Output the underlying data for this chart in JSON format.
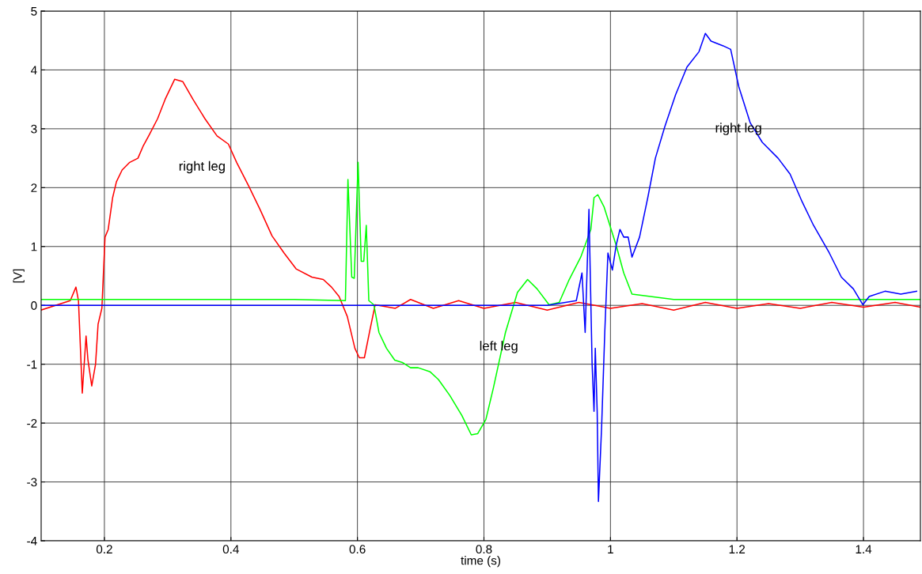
{
  "chart_data": {
    "type": "line",
    "xlabel": "time (s)",
    "ylabel": "[V]",
    "xlim": [
      0.1,
      1.49
    ],
    "xticks": [
      0.2,
      0.4,
      0.6,
      0.8,
      1,
      1.2,
      1.4
    ],
    "ylim": [
      -4,
      5
    ],
    "yticks": [
      -4,
      -3,
      -2,
      -1,
      0,
      1,
      2,
      3,
      4,
      5
    ],
    "grid": true,
    "line_style": "solid",
    "series": [
      {
        "name": "right leg",
        "color": "#ff0000",
        "x": [
          0.1,
          0.146,
          0.155,
          0.159,
          0.165,
          0.171,
          0.174,
          0.18,
          0.186,
          0.19,
          0.196,
          0.201,
          0.206,
          0.213,
          0.219,
          0.228,
          0.24,
          0.253,
          0.261,
          0.271,
          0.284,
          0.296,
          0.311,
          0.324,
          0.34,
          0.359,
          0.378,
          0.396,
          0.409,
          0.428,
          0.446,
          0.465,
          0.484,
          0.503,
          0.528,
          0.546,
          0.559,
          0.571,
          0.584,
          0.596,
          0.603,
          0.611,
          0.619,
          0.628,
          0.66,
          0.684,
          0.72,
          0.76,
          0.8,
          0.85,
          0.9,
          0.95,
          1.0,
          1.05,
          1.1,
          1.15,
          1.2,
          1.25,
          1.3,
          1.35,
          1.4,
          1.45,
          1.49
        ],
        "values": [
          -0.08,
          0.08,
          0.31,
          0.08,
          -1.49,
          -0.52,
          -0.93,
          -1.37,
          -1.0,
          -0.32,
          -0.05,
          1.16,
          1.29,
          1.83,
          2.1,
          2.3,
          2.43,
          2.5,
          2.7,
          2.9,
          3.17,
          3.5,
          3.84,
          3.8,
          3.5,
          3.17,
          2.88,
          2.74,
          2.43,
          2.03,
          1.63,
          1.18,
          0.89,
          0.62,
          0.48,
          0.44,
          0.31,
          0.15,
          -0.19,
          -0.73,
          -0.89,
          -0.89,
          -0.46,
          0.01,
          -0.05,
          0.1,
          -0.05,
          0.08,
          -0.05,
          0.05,
          -0.08,
          0.05,
          -0.05,
          0.03,
          -0.08,
          0.05,
          -0.05,
          0.03,
          -0.05,
          0.05,
          -0.03,
          0.05,
          -0.03
        ]
      },
      {
        "name": "left leg",
        "color": "#00ff00",
        "x": [
          0.1,
          0.2,
          0.3,
          0.4,
          0.5,
          0.581,
          0.585,
          0.591,
          0.595,
          0.601,
          0.606,
          0.61,
          0.614,
          0.618,
          0.626,
          0.634,
          0.646,
          0.659,
          0.671,
          0.684,
          0.696,
          0.715,
          0.728,
          0.746,
          0.765,
          0.78,
          0.79,
          0.803,
          0.815,
          0.834,
          0.853,
          0.869,
          0.884,
          0.903,
          0.919,
          0.934,
          0.953,
          0.969,
          0.974,
          0.98,
          0.99,
          1.009,
          1.021,
          1.034,
          1.1,
          1.2,
          1.3,
          1.4,
          1.49
        ],
        "values": [
          0.1,
          0.1,
          0.1,
          0.1,
          0.1,
          0.08,
          2.14,
          0.48,
          0.46,
          2.43,
          0.75,
          0.75,
          1.36,
          0.08,
          0.01,
          -0.46,
          -0.73,
          -0.93,
          -0.97,
          -1.06,
          -1.06,
          -1.13,
          -1.26,
          -1.53,
          -1.87,
          -2.2,
          -2.18,
          -1.94,
          -1.4,
          -0.46,
          0.22,
          0.44,
          0.28,
          0.01,
          0.05,
          0.42,
          0.82,
          1.29,
          1.83,
          1.88,
          1.67,
          1.02,
          0.55,
          0.19,
          0.1,
          0.1,
          0.1,
          0.1,
          0.1
        ]
      },
      {
        "name": "right leg",
        "color": "#0000ff",
        "x": [
          0.1,
          0.3,
          0.5,
          0.7,
          0.9,
          0.946,
          0.955,
          0.96,
          0.966,
          0.971,
          0.974,
          0.976,
          0.979,
          0.981,
          0.986,
          0.991,
          0.996,
          1.003,
          1.009,
          1.015,
          1.021,
          1.028,
          1.034,
          1.046,
          1.059,
          1.071,
          1.086,
          1.103,
          1.121,
          1.14,
          1.15,
          1.159,
          1.178,
          1.19,
          1.203,
          1.221,
          1.24,
          1.265,
          1.284,
          1.303,
          1.321,
          1.346,
          1.365,
          1.384,
          1.399,
          1.409,
          1.434,
          1.459,
          1.484
        ],
        "values": [
          0.0,
          0.0,
          0.0,
          0.0,
          0.0,
          0.08,
          0.55,
          -0.46,
          1.63,
          -1.0,
          -1.8,
          -0.73,
          -1.8,
          -3.33,
          -2.07,
          -0.46,
          0.89,
          0.6,
          1.02,
          1.29,
          1.16,
          1.16,
          0.82,
          1.16,
          1.83,
          2.5,
          3.04,
          3.58,
          4.05,
          4.31,
          4.62,
          4.49,
          4.41,
          4.35,
          3.71,
          3.1,
          2.77,
          2.5,
          2.23,
          1.76,
          1.36,
          0.89,
          0.48,
          0.28,
          0.01,
          0.15,
          0.24,
          0.19,
          0.24
        ]
      }
    ]
  }
}
